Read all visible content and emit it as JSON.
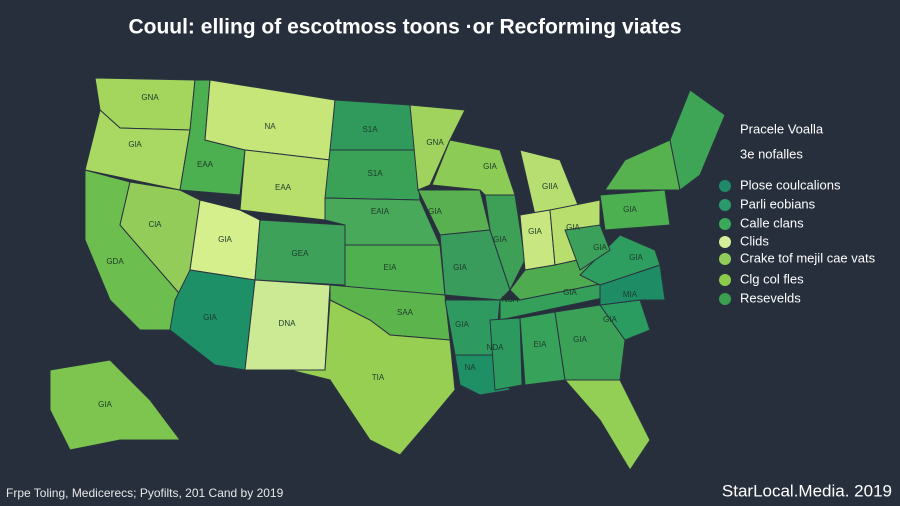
{
  "header": {
    "title": "Couul:  elling of escotmoss toons ·or Recforming viates"
  },
  "legend": {
    "title": "Pracele Voalla",
    "subtitle": "3e nofalles",
    "items": [
      "Plose coulcalions",
      "Parli eobians",
      "Calle clans",
      "Clids",
      "Crake tof mejil cae vats",
      "Clg col fles",
      "Resevelds"
    ]
  },
  "state_labels": [
    "GNA",
    "GlA",
    "EAA",
    "NA",
    "S1A",
    "GNA",
    "GIA",
    "GIIA",
    "GIA",
    "S1A",
    "EAA",
    "ClA",
    "GIA",
    "GEA",
    "EAIA",
    "GIA",
    "EIA",
    "GIA",
    "GIA",
    "GIA",
    "GIA",
    "GDA",
    "GIA",
    "DNA",
    "SAA",
    "GIA",
    "NDA",
    "EIA",
    "GIA",
    "TIA",
    "NSA",
    "GIA",
    "MIA",
    "GIA",
    "GIA",
    "GIA",
    "NA",
    "GIA"
  ],
  "footer": {
    "source": "Frpe Toling, Medicerecs; Pyofilts, 201 Cand by 2019",
    "brand": "StarLocal.Media. 2019"
  }
}
